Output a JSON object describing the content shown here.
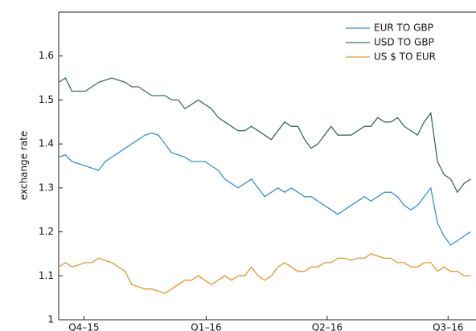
{
  "chart_data": {
    "type": "line",
    "y_label": "exchange rate",
    "x": [
      -19,
      -14,
      -9,
      -4,
      1,
      6,
      11,
      16,
      21,
      26,
      31,
      36,
      41,
      46,
      51,
      56,
      61,
      66,
      71,
      76,
      81,
      86,
      91,
      96,
      101,
      106,
      111,
      116,
      121,
      126,
      131,
      136,
      141,
      146,
      151,
      156,
      161,
      166,
      171,
      176,
      181,
      186,
      191,
      196,
      201,
      206,
      211,
      216,
      221,
      226,
      231,
      236,
      241,
      246,
      251,
      256,
      261,
      266,
      271,
      276,
      281,
      286,
      291
    ],
    "series": [
      {
        "name": "EUR TO GBP",
        "color": "#3a8fd3",
        "values": [
          1.37,
          1.375,
          1.36,
          1.355,
          1.35,
          1.345,
          1.34,
          1.36,
          1.37,
          1.38,
          1.39,
          1.4,
          1.41,
          1.42,
          1.425,
          1.42,
          1.4,
          1.38,
          1.375,
          1.37,
          1.36,
          1.36,
          1.36,
          1.35,
          1.34,
          1.32,
          1.31,
          1.3,
          1.31,
          1.32,
          1.3,
          1.28,
          1.29,
          1.3,
          1.29,
          1.3,
          1.29,
          1.28,
          1.28,
          1.27,
          1.26,
          1.25,
          1.24,
          1.25,
          1.26,
          1.27,
          1.28,
          1.27,
          1.28,
          1.29,
          1.29,
          1.28,
          1.26,
          1.25,
          1.26,
          1.28,
          1.3,
          1.22,
          1.19,
          1.17,
          1.18,
          1.19,
          1.2
        ]
      },
      {
        "name": "USD TO GBP",
        "color": "#3d6e50",
        "values": [
          1.54,
          1.55,
          1.52,
          1.52,
          1.52,
          1.53,
          1.54,
          1.545,
          1.55,
          1.545,
          1.54,
          1.53,
          1.53,
          1.52,
          1.51,
          1.51,
          1.51,
          1.5,
          1.5,
          1.48,
          1.49,
          1.5,
          1.49,
          1.48,
          1.46,
          1.45,
          1.44,
          1.43,
          1.43,
          1.44,
          1.43,
          1.42,
          1.41,
          1.43,
          1.45,
          1.44,
          1.44,
          1.41,
          1.39,
          1.4,
          1.42,
          1.44,
          1.42,
          1.42,
          1.42,
          1.43,
          1.44,
          1.44,
          1.46,
          1.45,
          1.45,
          1.46,
          1.44,
          1.43,
          1.42,
          1.45,
          1.47,
          1.36,
          1.33,
          1.32,
          1.29,
          1.31,
          1.32
        ]
      },
      {
        "name": "US $ TO EUR",
        "color": "#e8962e",
        "values": [
          1.12,
          1.13,
          1.12,
          1.125,
          1.13,
          1.13,
          1.14,
          1.135,
          1.13,
          1.12,
          1.11,
          1.08,
          1.075,
          1.07,
          1.07,
          1.065,
          1.06,
          1.07,
          1.08,
          1.09,
          1.09,
          1.1,
          1.09,
          1.08,
          1.09,
          1.1,
          1.09,
          1.1,
          1.1,
          1.12,
          1.1,
          1.09,
          1.1,
          1.12,
          1.13,
          1.12,
          1.11,
          1.11,
          1.12,
          1.12,
          1.13,
          1.13,
          1.14,
          1.14,
          1.135,
          1.14,
          1.14,
          1.15,
          1.145,
          1.14,
          1.14,
          1.13,
          1.13,
          1.12,
          1.12,
          1.13,
          1.13,
          1.11,
          1.12,
          1.11,
          1.11,
          1.1,
          1.1
        ]
      }
    ],
    "xlim": [
      -19,
      295
    ],
    "xticks": [
      {
        "value": 0,
        "label": "Q4–15"
      },
      {
        "value": 92,
        "label": "Q1–16"
      },
      {
        "value": 183,
        "label": "Q2–16"
      },
      {
        "value": 274,
        "label": "Q3–16"
      }
    ],
    "ylim": [
      1,
      1.7
    ],
    "yticks": [
      1,
      1.1,
      1.2,
      1.3,
      1.4,
      1.5,
      1.6
    ],
    "legend": "upper right",
    "grid": false
  }
}
